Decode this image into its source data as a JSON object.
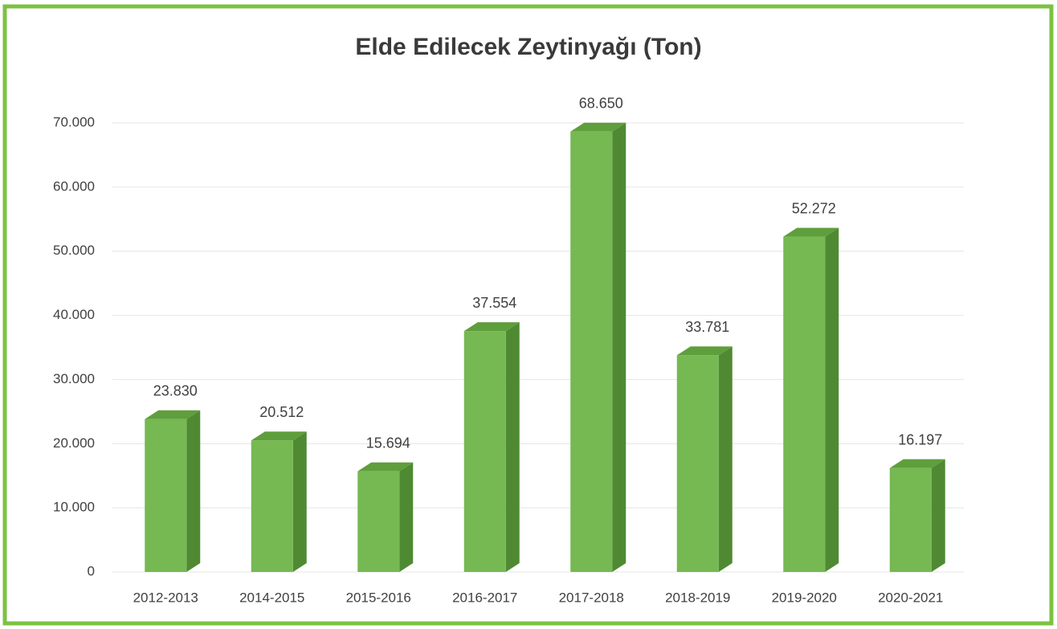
{
  "chart_data": {
    "type": "bar3d",
    "title": "Elde Edilecek Zeytinyağı (Ton)",
    "categories": [
      "2012-2013",
      "2014-2015",
      "2015-2016",
      "2016-2017",
      "2017-2018",
      "2018-2019",
      "2019-2020",
      "2020-2021"
    ],
    "values": [
      23830,
      20512,
      15694,
      37554,
      68650,
      33781,
      52272,
      16197
    ],
    "value_labels": [
      "23.830",
      "20.512",
      "15.694",
      "37.554",
      "68.650",
      "33.781",
      "52.272",
      "16.197"
    ],
    "color": "#76b852",
    "ylim": [
      0,
      70000
    ],
    "yticks": [
      0,
      {
        "value": 10000,
        "label": "10.000"
      },
      {
        "value": 20000,
        "label": "20.000"
      },
      {
        "value": 30000,
        "label": "30.000"
      },
      {
        "value": 40000,
        "label": "40.000"
      },
      {
        "value": 50000,
        "label": "50.000"
      },
      {
        "value": 60000,
        "label": "60.000"
      },
      {
        "value": 70000,
        "label": "70.000"
      }
    ],
    "grid": true
  }
}
